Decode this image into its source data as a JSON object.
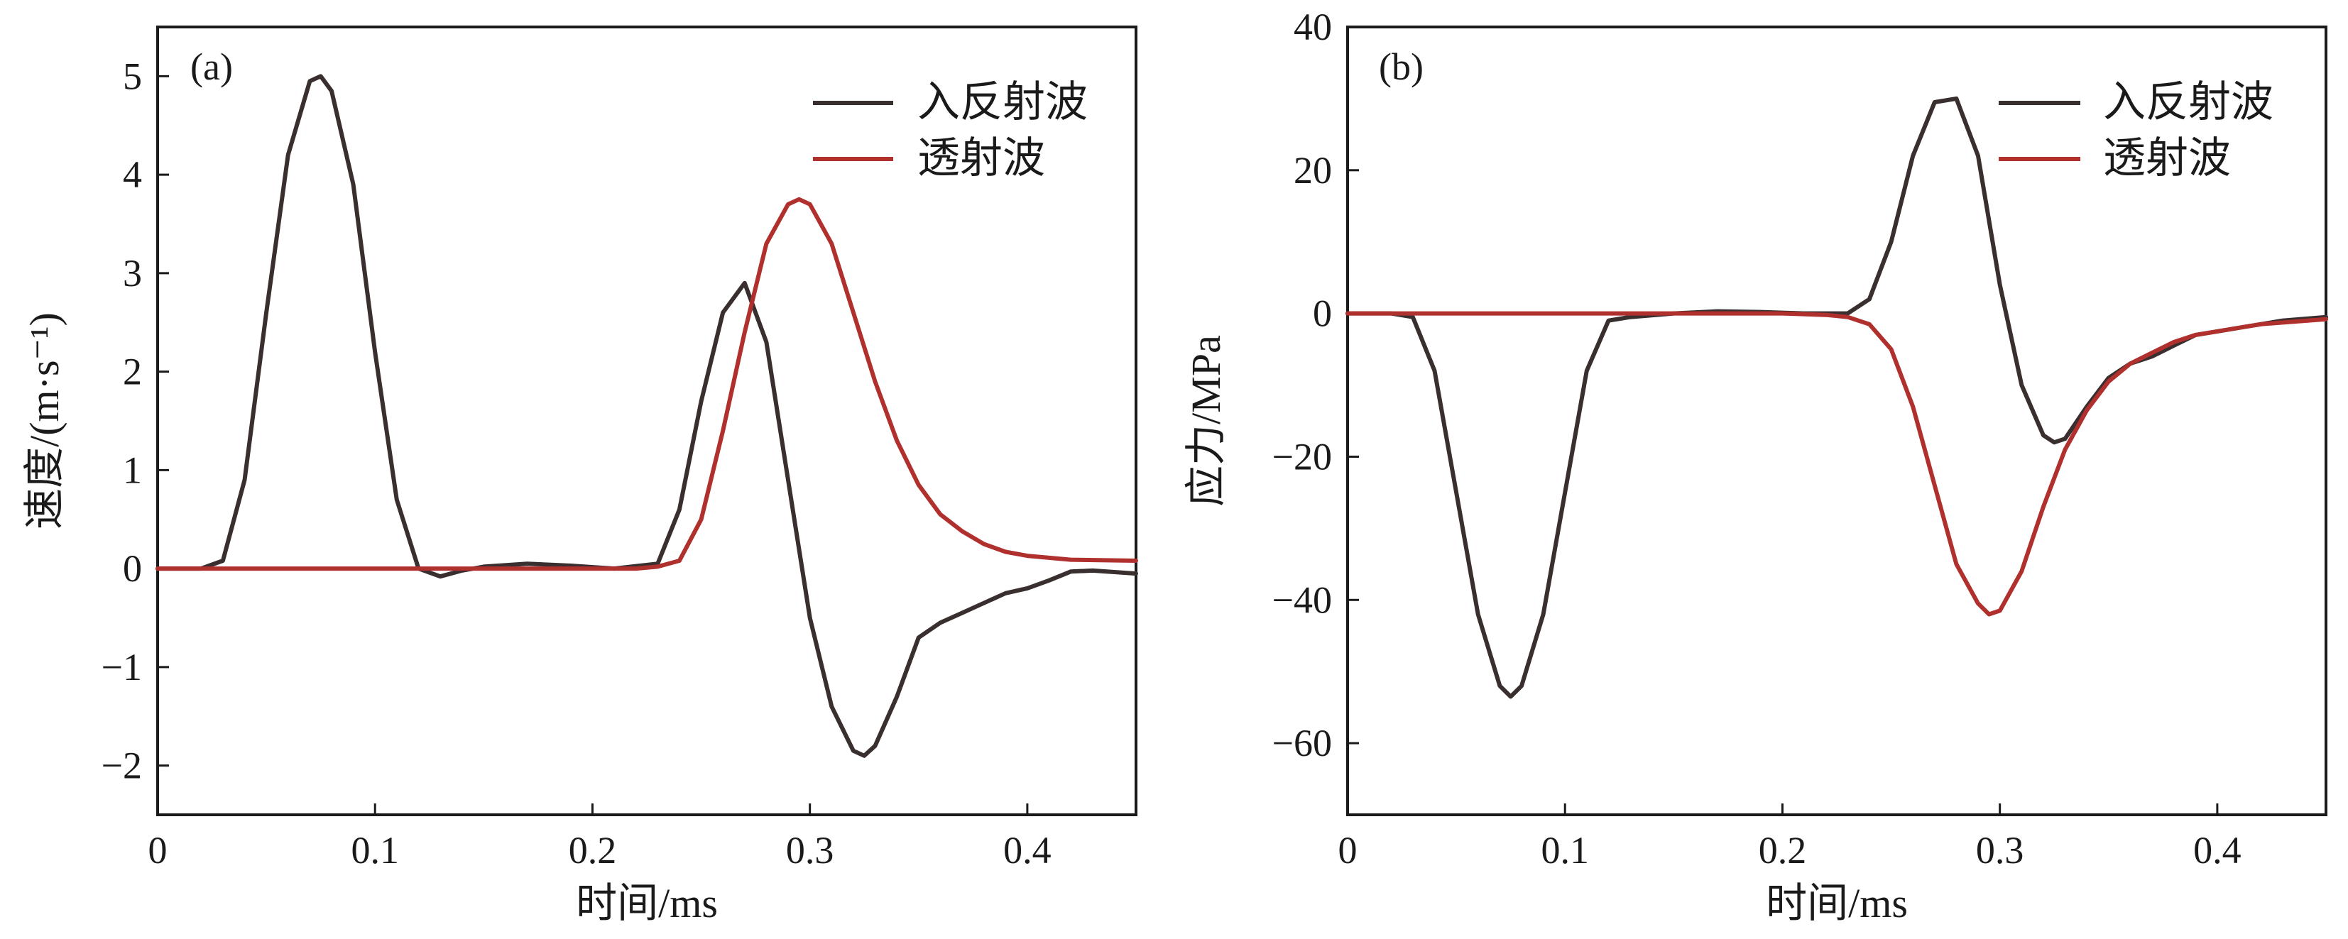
{
  "chart_data": [
    {
      "type": "line",
      "panel_label": "(a)",
      "xlabel": "时间/ms",
      "ylabel": "速度/(m·s⁻¹)",
      "xlim": [
        0,
        0.45
      ],
      "ylim": [
        -2.5,
        5.5
      ],
      "xticks": [
        0,
        0.1,
        0.2,
        0.3,
        0.4
      ],
      "xtick_labels": [
        "0",
        "0.1",
        "0.2",
        "0.3",
        "0.4"
      ],
      "yticks": [
        -2,
        -1,
        0,
        1,
        2,
        3,
        4,
        5
      ],
      "ytick_labels": [
        "−2",
        "−1",
        "0",
        "1",
        "2",
        "3",
        "4",
        "5"
      ],
      "legend_position": "top-right",
      "series": [
        {
          "name": "入反射波",
          "color": "#3a2f2f",
          "x": [
            0,
            0.02,
            0.03,
            0.04,
            0.05,
            0.06,
            0.07,
            0.075,
            0.08,
            0.09,
            0.1,
            0.11,
            0.12,
            0.13,
            0.14,
            0.15,
            0.17,
            0.19,
            0.21,
            0.23,
            0.24,
            0.25,
            0.26,
            0.27,
            0.28,
            0.29,
            0.3,
            0.31,
            0.32,
            0.325,
            0.33,
            0.34,
            0.35,
            0.36,
            0.37,
            0.38,
            0.39,
            0.4,
            0.41,
            0.42,
            0.43,
            0.45
          ],
          "values": [
            0,
            0,
            0.08,
            0.9,
            2.6,
            4.2,
            4.95,
            5.0,
            4.85,
            3.9,
            2.2,
            0.7,
            0.0,
            -0.08,
            -0.02,
            0.02,
            0.05,
            0.03,
            0.0,
            0.05,
            0.6,
            1.7,
            2.6,
            2.9,
            2.3,
            0.9,
            -0.5,
            -1.4,
            -1.85,
            -1.9,
            -1.8,
            -1.3,
            -0.7,
            -0.55,
            -0.45,
            -0.35,
            -0.25,
            -0.2,
            -0.12,
            -0.03,
            -0.02,
            -0.05
          ]
        },
        {
          "name": "透射波",
          "color": "#b0302e",
          "x": [
            0,
            0.2,
            0.22,
            0.23,
            0.24,
            0.25,
            0.26,
            0.27,
            0.28,
            0.29,
            0.295,
            0.3,
            0.31,
            0.32,
            0.33,
            0.34,
            0.35,
            0.36,
            0.37,
            0.38,
            0.39,
            0.4,
            0.42,
            0.45
          ],
          "values": [
            0,
            0,
            0.0,
            0.02,
            0.08,
            0.5,
            1.4,
            2.4,
            3.3,
            3.7,
            3.75,
            3.7,
            3.3,
            2.6,
            1.9,
            1.3,
            0.85,
            0.55,
            0.38,
            0.25,
            0.17,
            0.13,
            0.09,
            0.08
          ]
        }
      ]
    },
    {
      "type": "line",
      "panel_label": "(b)",
      "xlabel": "时间/ms",
      "ylabel": "应力/MPa",
      "xlim": [
        0,
        0.45
      ],
      "ylim": [
        -70,
        40
      ],
      "xticks": [
        0,
        0.1,
        0.2,
        0.3,
        0.4
      ],
      "xtick_labels": [
        "0",
        "0.1",
        "0.2",
        "0.3",
        "0.4"
      ],
      "yticks": [
        -60,
        -40,
        -20,
        0,
        20,
        40
      ],
      "ytick_labels": [
        "−60",
        "−40",
        "−20",
        "0",
        "20",
        "40"
      ],
      "legend_position": "top-right",
      "series": [
        {
          "name": "入反射波",
          "color": "#3a2f2f",
          "x": [
            0,
            0.02,
            0.03,
            0.04,
            0.05,
            0.06,
            0.07,
            0.075,
            0.08,
            0.09,
            0.1,
            0.11,
            0.12,
            0.13,
            0.15,
            0.17,
            0.19,
            0.21,
            0.23,
            0.24,
            0.25,
            0.26,
            0.27,
            0.28,
            0.29,
            0.3,
            0.31,
            0.32,
            0.325,
            0.33,
            0.34,
            0.35,
            0.36,
            0.37,
            0.38,
            0.39,
            0.4,
            0.41,
            0.42,
            0.43,
            0.45
          ],
          "values": [
            0,
            0,
            -0.5,
            -8,
            -25,
            -42,
            -52,
            -53.5,
            -52,
            -42,
            -25,
            -8,
            -1,
            -0.5,
            0,
            0.3,
            0.2,
            0,
            0,
            2,
            10,
            22,
            29.5,
            30,
            22,
            4,
            -10,
            -17,
            -18,
            -17.5,
            -13,
            -9,
            -7,
            -6,
            -4.5,
            -3,
            -2.5,
            -2,
            -1.5,
            -1,
            -0.5
          ]
        },
        {
          "name": "透射波",
          "color": "#b0302e",
          "x": [
            0,
            0.2,
            0.22,
            0.23,
            0.24,
            0.25,
            0.26,
            0.27,
            0.28,
            0.29,
            0.295,
            0.3,
            0.31,
            0.32,
            0.33,
            0.34,
            0.35,
            0.36,
            0.37,
            0.38,
            0.39,
            0.4,
            0.42,
            0.45
          ],
          "values": [
            0,
            0,
            -0.2,
            -0.5,
            -1.5,
            -5,
            -13,
            -24,
            -35,
            -40.5,
            -42,
            -41.5,
            -36,
            -27,
            -19,
            -13.5,
            -9.5,
            -7,
            -5.5,
            -4,
            -3,
            -2.5,
            -1.5,
            -0.8
          ]
        }
      ]
    }
  ]
}
